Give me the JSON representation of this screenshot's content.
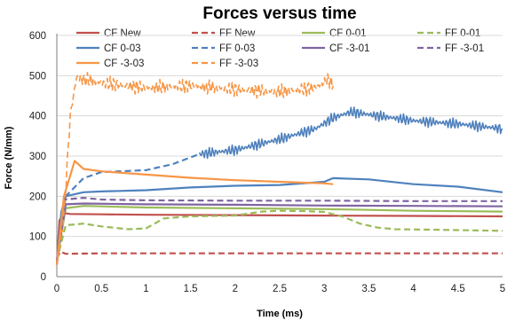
{
  "chart_data": {
    "type": "line",
    "title": "Forces versus time",
    "xlabel": "Time (ms)",
    "ylabel": "Force (N/mm)",
    "xlim": [
      0,
      5
    ],
    "ylim": [
      0,
      600
    ],
    "xticks": [
      "0",
      "0.5",
      "1",
      "1.5",
      "2",
      "2.5",
      "3",
      "3.5",
      "4",
      "4.5",
      "5"
    ],
    "yticks": [
      "0",
      "100",
      "200",
      "300",
      "400",
      "500",
      "600"
    ],
    "grid": "horizontal",
    "legend_position": "top",
    "series": [
      {
        "name": "CF New",
        "color": "#c0504d",
        "dash": "solid",
        "noise": 0,
        "points": [
          [
            0,
            30
          ],
          [
            0.03,
            140
          ],
          [
            0.08,
            158
          ],
          [
            0.15,
            156
          ],
          [
            0.5,
            155
          ],
          [
            1,
            154
          ],
          [
            2,
            153
          ],
          [
            3,
            152
          ],
          [
            4,
            151
          ],
          [
            5,
            150
          ]
        ]
      },
      {
        "name": "FF New",
        "color": "#c0504d",
        "dash": "dashed",
        "noise": 0,
        "points": [
          [
            0,
            45
          ],
          [
            0.04,
            62
          ],
          [
            0.1,
            57
          ],
          [
            0.5,
            58
          ],
          [
            1,
            58
          ],
          [
            2,
            58
          ],
          [
            3,
            58
          ],
          [
            4,
            58
          ],
          [
            5,
            58
          ]
        ]
      },
      {
        "name": "CF 0-01",
        "color": "#9bbb59",
        "dash": "solid",
        "noise": 0,
        "points": [
          [
            0,
            40
          ],
          [
            0.1,
            170
          ],
          [
            0.3,
            176
          ],
          [
            1,
            172
          ],
          [
            2,
            170
          ],
          [
            3,
            168
          ],
          [
            3.5,
            166
          ],
          [
            4,
            164
          ],
          [
            5,
            162
          ]
        ]
      },
      {
        "name": "FF 0-01",
        "color": "#9bbb59",
        "dash": "dashed",
        "noise": 0,
        "points": [
          [
            0,
            40
          ],
          [
            0.1,
            128
          ],
          [
            0.3,
            132
          ],
          [
            0.5,
            125
          ],
          [
            0.8,
            118
          ],
          [
            1.0,
            120
          ],
          [
            1.2,
            145
          ],
          [
            1.5,
            150
          ],
          [
            2,
            152
          ],
          [
            2.3,
            162
          ],
          [
            2.5,
            164
          ],
          [
            2.8,
            163
          ],
          [
            3.0,
            161
          ],
          [
            3.2,
            150
          ],
          [
            3.4,
            132
          ],
          [
            3.6,
            122
          ],
          [
            3.8,
            118
          ],
          [
            4.2,
            117
          ],
          [
            5,
            114
          ]
        ]
      },
      {
        "name": "CF 0-03",
        "color": "#4f81bd",
        "dash": "solid",
        "noise": 0,
        "points": [
          [
            0,
            30
          ],
          [
            0.05,
            160
          ],
          [
            0.1,
            200
          ],
          [
            0.3,
            210
          ],
          [
            0.5,
            212
          ],
          [
            1,
            215
          ],
          [
            1.5,
            222
          ],
          [
            2,
            226
          ],
          [
            2.5,
            228
          ],
          [
            3,
            236
          ],
          [
            3.1,
            245
          ],
          [
            3.5,
            242
          ],
          [
            4,
            230
          ],
          [
            4.5,
            224
          ],
          [
            5,
            210
          ]
        ]
      },
      {
        "name": "FF 0-03",
        "color": "#4f81bd",
        "dash": "dashed",
        "noise": 0,
        "points": [
          [
            0,
            30
          ],
          [
            0.1,
            200
          ],
          [
            0.3,
            245
          ],
          [
            0.5,
            260
          ],
          [
            1,
            265
          ],
          [
            1.3,
            280
          ],
          [
            1.6,
            305
          ]
        ]
      },
      {
        "name": "CF 0-03",
        "color": "#4f81bd",
        "dash": "solid",
        "noise": 28,
        "points": [
          [
            1.6,
            305
          ],
          [
            2,
            315
          ],
          [
            2.5,
            342
          ],
          [
            2.9,
            368
          ],
          [
            3.1,
            395
          ],
          [
            3.3,
            410
          ],
          [
            3.6,
            400
          ],
          [
            4,
            388
          ],
          [
            4.5,
            380
          ],
          [
            5,
            368
          ]
        ]
      },
      {
        "name": "CF -3-01",
        "color": "#8064a2",
        "dash": "solid",
        "noise": 0,
        "points": [
          [
            0,
            40
          ],
          [
            0.1,
            180
          ],
          [
            0.3,
            182
          ],
          [
            1,
            180
          ],
          [
            2,
            179
          ],
          [
            3,
            177
          ],
          [
            4,
            176
          ],
          [
            5,
            175
          ]
        ]
      },
      {
        "name": "FF -3-01",
        "color": "#8064a2",
        "dash": "dashed",
        "noise": 0,
        "points": [
          [
            0,
            40
          ],
          [
            0.08,
            192
          ],
          [
            0.3,
            196
          ],
          [
            0.5,
            192
          ],
          [
            1,
            190
          ],
          [
            2,
            189
          ],
          [
            3,
            189
          ],
          [
            4,
            188
          ],
          [
            5,
            188
          ]
        ]
      },
      {
        "name": "CF -3-03",
        "color": "#f79646",
        "dash": "solid",
        "noise": 0,
        "points": [
          [
            0,
            30
          ],
          [
            0.08,
            200
          ],
          [
            0.2,
            288
          ],
          [
            0.3,
            268
          ],
          [
            0.5,
            262
          ],
          [
            1,
            254
          ],
          [
            1.5,
            246
          ],
          [
            2,
            240
          ],
          [
            2.5,
            236
          ],
          [
            3,
            232
          ],
          [
            3.1,
            230
          ]
        ]
      },
      {
        "name": "FF -3-03",
        "color": "#f79646",
        "dash": "dashed",
        "noise": 38,
        "points": [
          [
            0,
            30
          ],
          [
            0.08,
            150
          ],
          [
            0.15,
            400
          ],
          [
            0.22,
            495
          ],
          [
            0.5,
            482
          ],
          [
            1,
            470
          ],
          [
            1.5,
            475
          ],
          [
            2,
            466
          ],
          [
            2.5,
            460
          ],
          [
            2.9,
            470
          ],
          [
            3.05,
            490
          ],
          [
            3.1,
            475
          ]
        ]
      }
    ]
  }
}
